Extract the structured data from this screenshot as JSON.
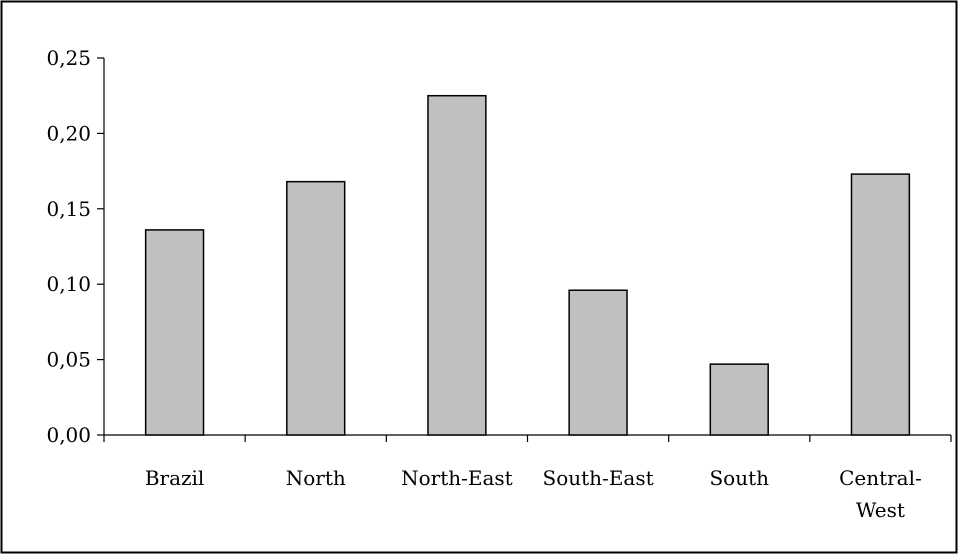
{
  "chart_data": {
    "type": "bar",
    "title": "",
    "xlabel": "",
    "ylabel": "",
    "categories": [
      "Brazil",
      "North",
      "North-East",
      "South-East",
      "South",
      "Central-West"
    ],
    "category_label_lines": [
      [
        "Brazil"
      ],
      [
        "North"
      ],
      [
        "North-East"
      ],
      [
        "South-East"
      ],
      [
        "South"
      ],
      [
        "Central-",
        "West"
      ]
    ],
    "values": [
      0.136,
      0.168,
      0.225,
      0.096,
      0.047,
      0.173
    ],
    "ylim": [
      0,
      0.25
    ],
    "yticks": [
      0,
      0.05,
      0.1,
      0.15,
      0.2,
      0.25
    ],
    "ytick_labels": [
      "0,00",
      "0,05",
      "0,10",
      "0,15",
      "0,20",
      "0,25"
    ],
    "grid": false,
    "legend": "none",
    "colors": {
      "bar_fill": "#c0c0c0",
      "bar_stroke": "#000000",
      "axis": "#000000",
      "frame": "#000000",
      "background": "#ffffff"
    }
  }
}
